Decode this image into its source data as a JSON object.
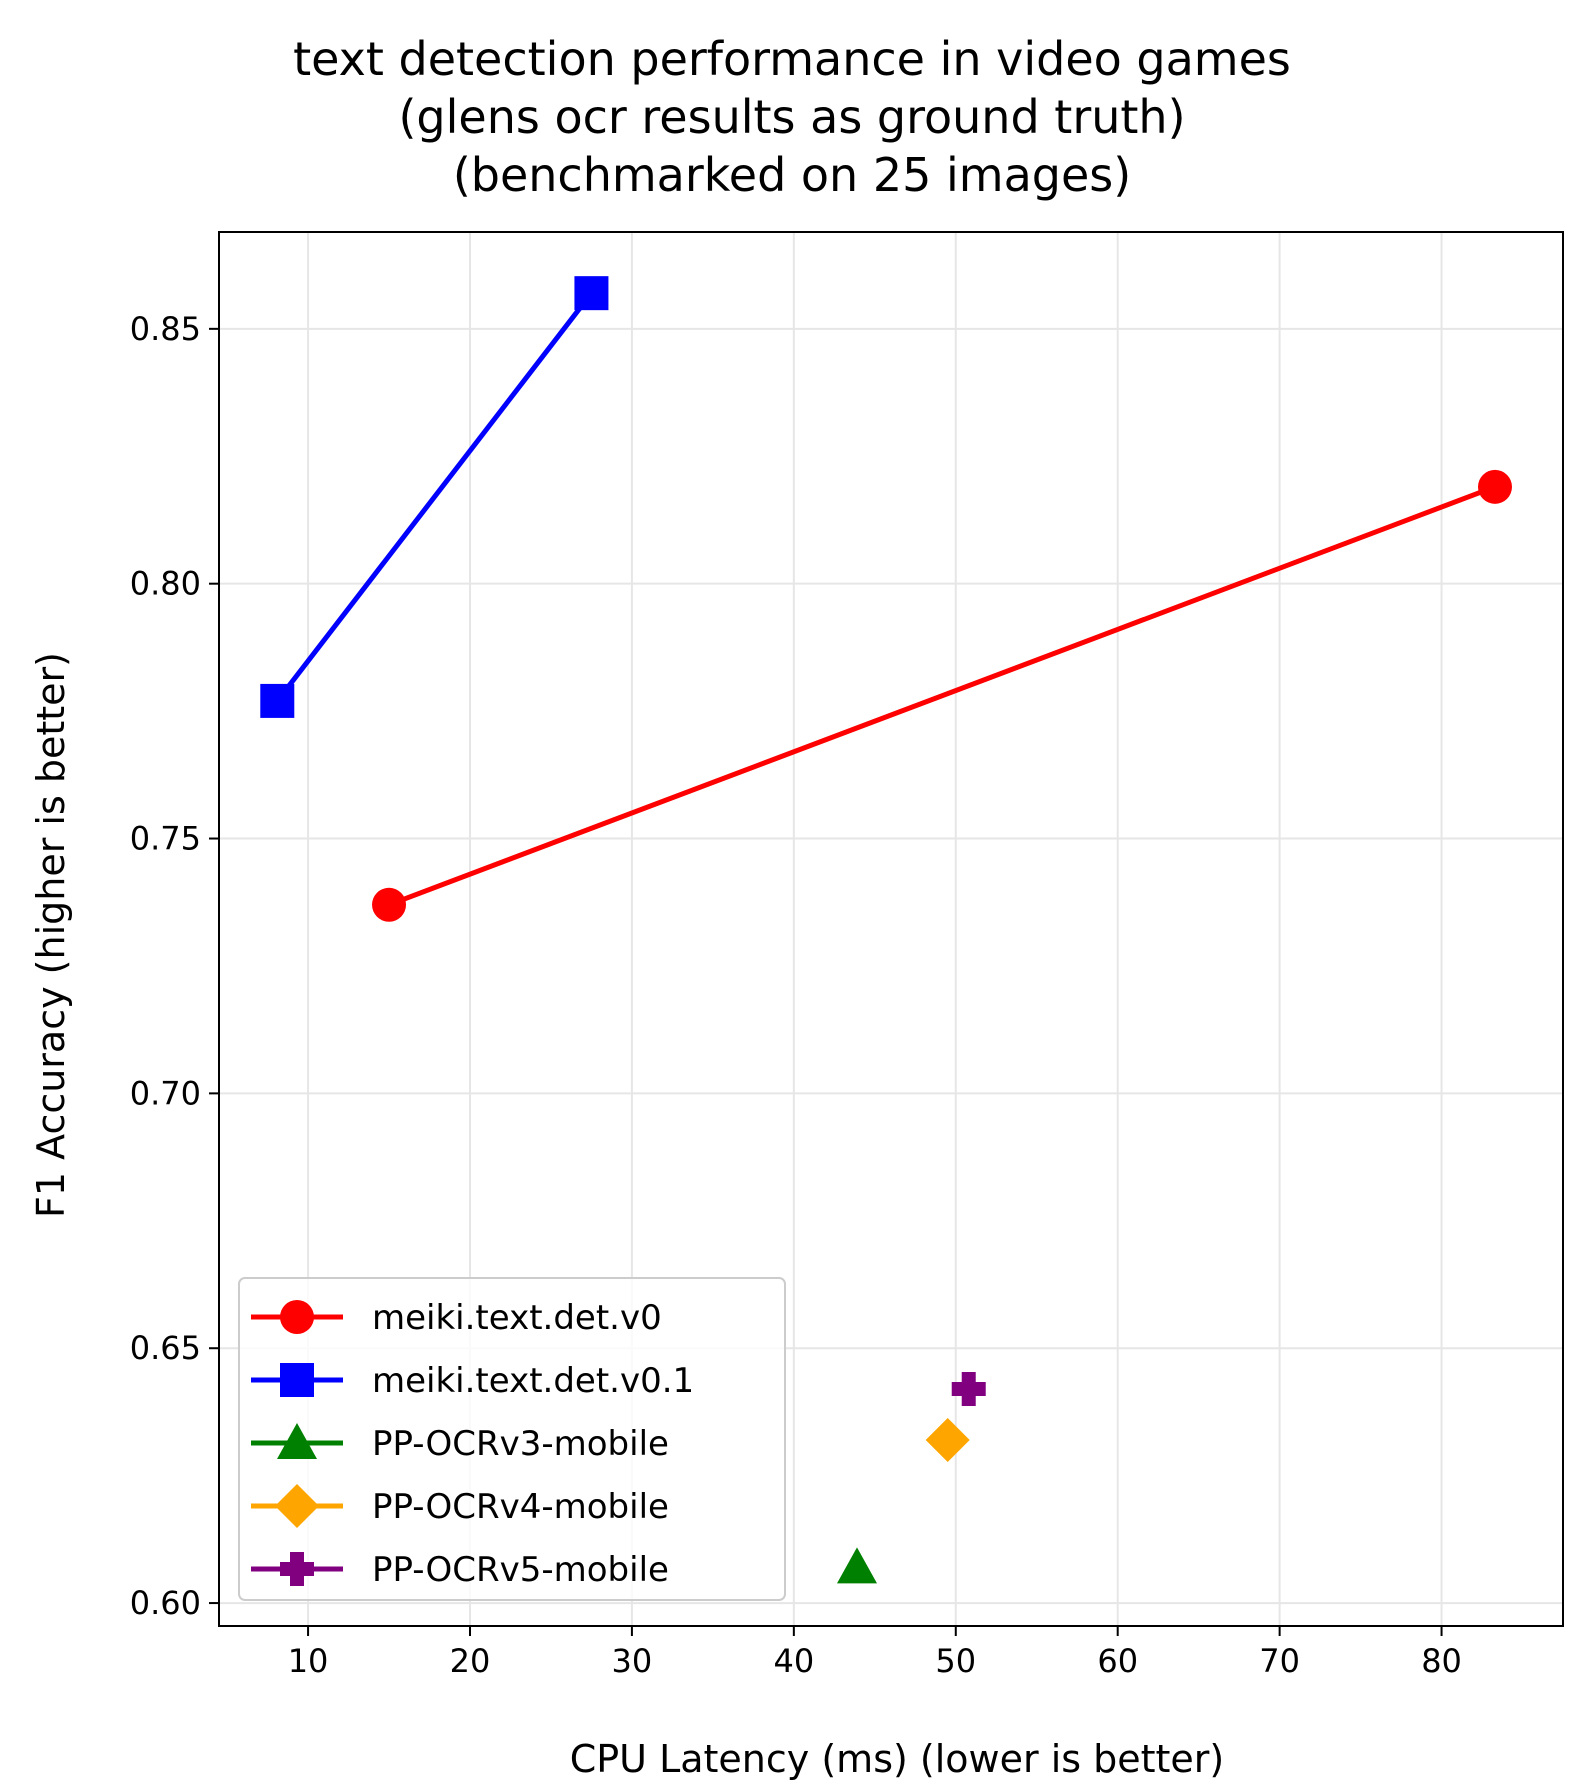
{
  "chart_data": {
    "type": "scatter",
    "title_lines": [
      "text detection performance in video games",
      "(glens ocr results as ground truth)",
      "(benchmarked on 25 images)"
    ],
    "xlabel": "CPU Latency (ms) (lower is better)",
    "ylabel": "F1 Accuracy (higher is better)",
    "xlim": [
      4.5,
      87.5
    ],
    "ylim": [
      0.5955,
      0.869
    ],
    "x_ticks": [
      10,
      20,
      30,
      40,
      50,
      60,
      70,
      80
    ],
    "x_tick_labels": [
      "10",
      "20",
      "30",
      "40",
      "50",
      "60",
      "70",
      "80"
    ],
    "y_ticks": [
      0.6,
      0.65,
      0.7,
      0.75,
      0.8,
      0.85
    ],
    "y_tick_labels": [
      "0.60",
      "0.65",
      "0.70",
      "0.75",
      "0.80",
      "0.85"
    ],
    "grid": true,
    "legend_position": "lower-left",
    "series": [
      {
        "name": "meiki.text.det.v0",
        "color": "#ff0000",
        "marker": "circle",
        "points": [
          {
            "x": 15.0,
            "y": 0.737
          },
          {
            "x": 83.3,
            "y": 0.819
          }
        ]
      },
      {
        "name": "meiki.text.det.v0.1",
        "color": "#0000ff",
        "marker": "square",
        "points": [
          {
            "x": 8.1,
            "y": 0.777
          },
          {
            "x": 27.5,
            "y": 0.857
          }
        ]
      },
      {
        "name": "PP-OCRv3-mobile",
        "color": "#008000",
        "marker": "triangle",
        "points": [
          {
            "x": 43.9,
            "y": 0.607
          }
        ]
      },
      {
        "name": "PP-OCRv4-mobile",
        "color": "#ffa500",
        "marker": "diamond",
        "points": [
          {
            "x": 49.5,
            "y": 0.632
          }
        ]
      },
      {
        "name": "PP-OCRv5-mobile",
        "color": "#800080",
        "marker": "plus",
        "points": [
          {
            "x": 50.8,
            "y": 0.642
          }
        ]
      }
    ]
  }
}
